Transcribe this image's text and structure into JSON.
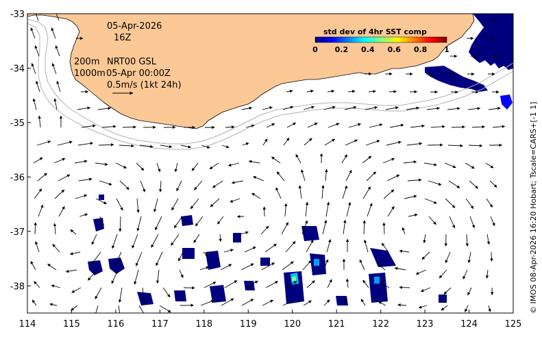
{
  "map": {
    "date": "05-Apr-2026",
    "hour": "16Z",
    "depth_line1": "200m",
    "depth_line2": "1000m",
    "product": "NRT00 GSL",
    "product_time": "05-Apr 00:00Z",
    "scale_label": "0.5m/s (1kt 24h)",
    "credit": "© IMOS 08-Apr-2026 16:20 Hobart; Tscale=CARS+[-1 1]",
    "colors": {
      "land": "#fcc896",
      "frame": "#000000",
      "arrow": "#000000",
      "contour": "#b0b0b0"
    }
  },
  "colorbar": {
    "title": "std dev of 4hr SST comp",
    "ticks": [
      "0",
      "0.2",
      "0.4",
      "0.6",
      "0.8",
      "1"
    ],
    "stops": [
      "#00007f",
      "#0000ff",
      "#007fff",
      "#00ffff",
      "#7fff7f",
      "#ffff00",
      "#ff7f00",
      "#ff0000",
      "#7f0000"
    ]
  },
  "axes": {
    "x_ticks": [
      "114",
      "115",
      "116",
      "117",
      "118",
      "119",
      "120",
      "121",
      "122",
      "123",
      "124",
      "125"
    ],
    "y_ticks": [
      "-33",
      "-34",
      "-35",
      "-36",
      "-37",
      "-38"
    ]
  },
  "chart_data": {
    "type": "map",
    "xlim": [
      114,
      125
    ],
    "ylim": [
      -38.5,
      -33
    ],
    "x_unit": "deg E longitude",
    "y_unit": "deg latitude",
    "sst_patches": [
      {
        "lon": 124.6,
        "lat": -33.6,
        "value": 0.05
      },
      {
        "lon": 123.8,
        "lat": -34.2,
        "value": 0.05
      },
      {
        "lon": 115.5,
        "lat": -37.0,
        "value": 0.05
      },
      {
        "lon": 116.3,
        "lat": -37.6,
        "value": 0.05
      },
      {
        "lon": 117.1,
        "lat": -38.2,
        "value": 0.05
      },
      {
        "lon": 118.3,
        "lat": -37.5,
        "value": 0.05
      },
      {
        "lon": 118.5,
        "lat": -38.1,
        "value": 0.05
      },
      {
        "lon": 119.7,
        "lat": -38.0,
        "value": 0.1
      },
      {
        "lon": 120.1,
        "lat": -37.9,
        "value": 0.5
      },
      {
        "lon": 120.7,
        "lat": -37.5,
        "value": 0.1
      },
      {
        "lon": 121.6,
        "lat": -37.4,
        "value": 0.05
      },
      {
        "lon": 122.1,
        "lat": -37.9,
        "value": 0.1
      }
    ]
  }
}
